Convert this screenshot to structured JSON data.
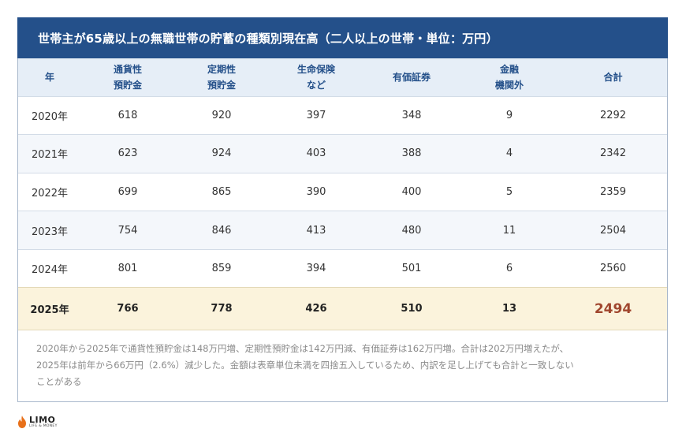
{
  "title": "世帯主が65歳以上の無職世帯の貯蓄の種類別現在高（二人以上の世帯・単位：万円）",
  "table": {
    "headers": [
      [
        "年"
      ],
      [
        "通貨性",
        "預貯金"
      ],
      [
        "定期性",
        "預貯金"
      ],
      [
        "生命保険",
        "など"
      ],
      [
        "有価証券"
      ],
      [
        "金融",
        "機関外"
      ],
      [
        "合計"
      ]
    ],
    "rows": [
      [
        "2020年",
        "618",
        "920",
        "397",
        "348",
        "9",
        "2292"
      ],
      [
        "2021年",
        "623",
        "924",
        "403",
        "388",
        "4",
        "2342"
      ],
      [
        "2022年",
        "699",
        "865",
        "390",
        "400",
        "5",
        "2359"
      ],
      [
        "2023年",
        "754",
        "846",
        "413",
        "480",
        "11",
        "2504"
      ],
      [
        "2024年",
        "801",
        "859",
        "394",
        "501",
        "6",
        "2560"
      ]
    ],
    "highlight_row": [
      "2025年",
      "766",
      "778",
      "426",
      "510",
      "13",
      "2494"
    ]
  },
  "note": [
    "2020年から2025年で通貨性預貯金は148万円増、定期性預貯金は142万円減、有価証券は162万円増。合計は202万円増えたが、",
    "2025年は前年から66万円（2.6%）減少した。金額は表章単位未満を四捨五入しているため、内訳を足し上げても合計と一致しない",
    "ことがある"
  ],
  "logo": {
    "main": "LIMO",
    "sub": "LIFE & MONEY"
  },
  "colors": {
    "header_bg": "#24508a",
    "column_header_bg": "#e6eef7",
    "highlight_bg": "#fbf3dc",
    "highlight_total": "#a0462e",
    "logo_accent": "#e8701a"
  }
}
